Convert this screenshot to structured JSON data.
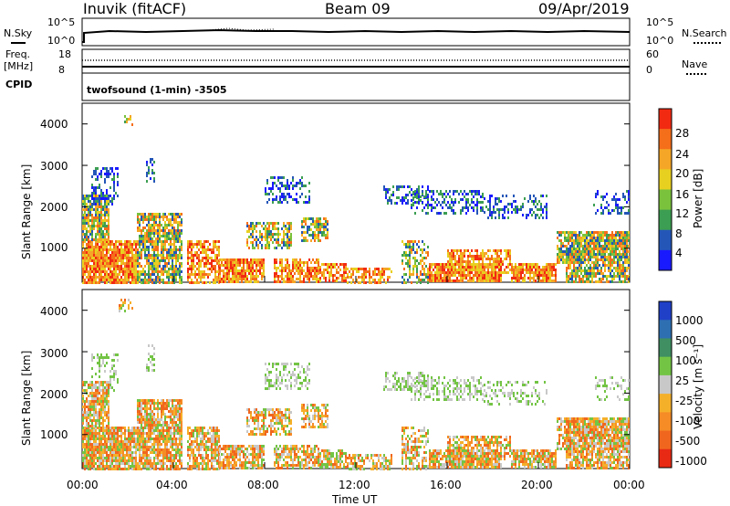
{
  "header": {
    "station": "Inuvik (fitACF)",
    "beam": "Beam 09",
    "date": "09/Apr/2019"
  },
  "noise_panel": {
    "left_label": "N.Sky",
    "right_label": "N.Search",
    "left_ticks": [
      "10^5",
      "10^0"
    ],
    "right_ticks": [
      "10^5",
      "10^0"
    ]
  },
  "freq_panel": {
    "left_label_1": "Freq.",
    "left_label_2": "[MHz]",
    "right_label": "Nave",
    "left_ticks": [
      "18",
      "8"
    ],
    "right_ticks": [
      "60",
      "0"
    ]
  },
  "cpid": {
    "label": "CPID",
    "text": "twofsound (1-min) -3505"
  },
  "chart_data": [
    {
      "type": "heatmap",
      "title": "",
      "ylabel": "Slant Range [km]",
      "xlabel": "",
      "ylim": [
        180,
        4500
      ],
      "y_ticks": [
        "1000",
        "2000",
        "3000",
        "4000"
      ],
      "colorbar": {
        "title": "Power [dB]",
        "ticks": [
          "4",
          "8",
          "12",
          "16",
          "20",
          "24",
          "28"
        ],
        "colors": [
          "#1a1aff",
          "#2456b8",
          "#3c9e52",
          "#7ac23c",
          "#e8d020",
          "#f5a626",
          "#f56e1a",
          "#f22a12"
        ]
      }
    },
    {
      "type": "heatmap",
      "title": "",
      "ylabel": "Slant Range [km]",
      "xlabel": "Time UT",
      "ylim": [
        180,
        4500
      ],
      "x_ticks": [
        "00:00",
        "04:00",
        "08:00",
        "12:00",
        "16:00",
        "20:00",
        "00:00"
      ],
      "y_ticks": [
        "1000",
        "2000",
        "3000",
        "4000"
      ],
      "colorbar": {
        "title": "Velocity [m s⁻¹]",
        "ticks": [
          "1000",
          "500",
          "100",
          "25",
          "-25",
          "-100",
          "-500",
          "-1000"
        ],
        "colors": [
          "#2040c8",
          "#2e6fb2",
          "#3f8f62",
          "#73c444",
          "#c8c8c8",
          "#f5b02a",
          "#f58c26",
          "#f0661e",
          "#e82a14"
        ]
      }
    }
  ]
}
